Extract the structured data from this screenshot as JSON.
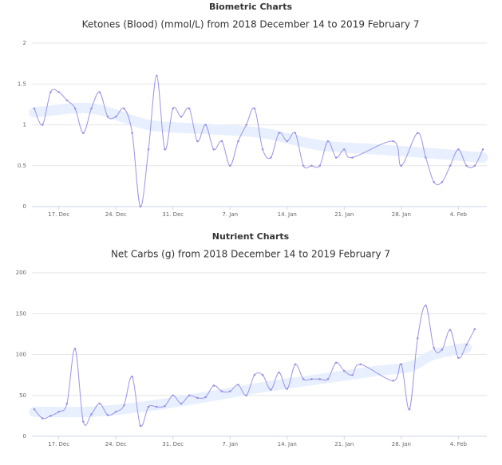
{
  "chart_data": [
    {
      "type": "line",
      "heading": "Biometric Charts",
      "title": "Ketones (Blood) (mmol/L) from 2018 December 14 to 2019 February 7",
      "xlim": [
        "2018-12-14",
        "2019-02-07"
      ],
      "xticks": [
        {
          "value": "2018-12-17",
          "label": "17. Dec"
        },
        {
          "value": "2018-12-24",
          "label": "24. Dec"
        },
        {
          "value": "2018-12-31",
          "label": "31. Dec"
        },
        {
          "value": "2019-01-07",
          "label": "7. Jan"
        },
        {
          "value": "2019-01-14",
          "label": "14. Jan"
        },
        {
          "value": "2019-01-21",
          "label": "21. Jan"
        },
        {
          "value": "2019-01-28",
          "label": "28. Jan"
        },
        {
          "value": "2019-02-04",
          "label": "4. Feb"
        }
      ],
      "ylim": [
        0,
        2
      ],
      "yticks": [
        0,
        0.5,
        1,
        1.5,
        2
      ],
      "grid": true,
      "series": [
        {
          "color": "#e8efff",
          "style": "band",
          "x": [
            "2018-12-14",
            "2018-12-21",
            "2018-12-28",
            "2019-01-04",
            "2019-01-11",
            "2019-01-18",
            "2019-01-25",
            "2019-02-01",
            "2019-02-07"
          ],
          "values": [
            1.15,
            1.2,
            1.0,
            0.95,
            0.9,
            0.75,
            0.7,
            0.65,
            0.6
          ]
        },
        {
          "color": "#9a94e6",
          "style": "line",
          "x": [
            "2018-12-14",
            "2018-12-15",
            "2018-12-16",
            "2018-12-17",
            "2018-12-18",
            "2018-12-19",
            "2018-12-20",
            "2018-12-21",
            "2018-12-22",
            "2018-12-23",
            "2018-12-24",
            "2018-12-25",
            "2018-12-26",
            "2018-12-27",
            "2018-12-28",
            "2018-12-29",
            "2018-12-30",
            "2018-12-31",
            "2019-01-01",
            "2019-01-02",
            "2019-01-03",
            "2019-01-04",
            "2019-01-05",
            "2019-01-06",
            "2019-01-07",
            "2019-01-08",
            "2019-01-09",
            "2019-01-10",
            "2019-01-11",
            "2019-01-12",
            "2019-01-13",
            "2019-01-14",
            "2019-01-15",
            "2019-01-16",
            "2019-01-17",
            "2019-01-18",
            "2019-01-19",
            "2019-01-20",
            "2019-01-21",
            "2019-01-22",
            "2019-01-27",
            "2019-01-28",
            "2019-01-30",
            "2019-01-31",
            "2019-02-01",
            "2019-02-02",
            "2019-02-03",
            "2019-02-04",
            "2019-02-05",
            "2019-02-06",
            "2019-02-07"
          ],
          "values": [
            1.2,
            1.0,
            1.4,
            1.4,
            1.3,
            1.2,
            0.9,
            1.2,
            1.4,
            1.1,
            1.1,
            1.2,
            0.9,
            0,
            0.7,
            1.6,
            0.7,
            1.2,
            1.1,
            1.2,
            0.8,
            1.0,
            0.7,
            0.8,
            0.5,
            0.8,
            1.0,
            1.2,
            0.7,
            0.6,
            0.9,
            0.8,
            0.9,
            0.5,
            0.5,
            0.5,
            0.8,
            0.6,
            0.7,
            0.6,
            0.8,
            0.5,
            0.9,
            0.6,
            0.3,
            0.3,
            0.5,
            0.7,
            0.5,
            0.5,
            0.7
          ]
        }
      ]
    },
    {
      "type": "line",
      "heading": "Nutrient Charts",
      "title": "Net Carbs (g) from 2018 December 14 to 2019 February 7",
      "xlim": [
        "2018-12-14",
        "2019-02-07"
      ],
      "xticks": [
        {
          "value": "2018-12-17",
          "label": "17. Dec"
        },
        {
          "value": "2018-12-24",
          "label": "24. Dec"
        },
        {
          "value": "2018-12-31",
          "label": "31. Dec"
        },
        {
          "value": "2019-01-07",
          "label": "7. Jan"
        },
        {
          "value": "2019-01-14",
          "label": "14. Jan"
        },
        {
          "value": "2019-01-21",
          "label": "21. Jan"
        },
        {
          "value": "2019-01-28",
          "label": "28. Jan"
        },
        {
          "value": "2019-02-04",
          "label": "4. Feb"
        }
      ],
      "ylim": [
        0,
        200
      ],
      "yticks": [
        0,
        50,
        100,
        150,
        200
      ],
      "grid": true,
      "series": [
        {
          "color": "#e8efff",
          "style": "band",
          "x": [
            "2018-12-14",
            "2018-12-21",
            "2018-12-28",
            "2019-01-04",
            "2019-01-11",
            "2019-01-18",
            "2019-01-25",
            "2019-01-29",
            "2019-02-01",
            "2019-02-05"
          ],
          "values": [
            30,
            30,
            37,
            48,
            60,
            70,
            80,
            85,
            100,
            108
          ]
        },
        {
          "color": "#9a94e6",
          "style": "line",
          "x": [
            "2018-12-14",
            "2018-12-15",
            "2018-12-16",
            "2018-12-17",
            "2018-12-18",
            "2018-12-19",
            "2018-12-20",
            "2018-12-21",
            "2018-12-22",
            "2018-12-23",
            "2018-12-24",
            "2018-12-25",
            "2018-12-26",
            "2018-12-27",
            "2018-12-28",
            "2018-12-29",
            "2018-12-30",
            "2018-12-31",
            "2019-01-01",
            "2019-01-02",
            "2019-01-03",
            "2019-01-04",
            "2019-01-05",
            "2019-01-06",
            "2019-01-07",
            "2019-01-08",
            "2019-01-09",
            "2019-01-10",
            "2019-01-11",
            "2019-01-12",
            "2019-01-13",
            "2019-01-14",
            "2019-01-15",
            "2019-01-16",
            "2019-01-17",
            "2019-01-18",
            "2019-01-19",
            "2019-01-20",
            "2019-01-21",
            "2019-01-22",
            "2019-01-23",
            "2019-01-27",
            "2019-01-28",
            "2019-01-29",
            "2019-01-30",
            "2019-01-31",
            "2019-02-01",
            "2019-02-02",
            "2019-02-03",
            "2019-02-04",
            "2019-02-05",
            "2019-02-06"
          ],
          "values": [
            33,
            22,
            25,
            30,
            40,
            107,
            18,
            27,
            40,
            26,
            30,
            38,
            73,
            13,
            36,
            36,
            37,
            50,
            40,
            50,
            47,
            48,
            62,
            55,
            55,
            63,
            50,
            75,
            75,
            57,
            78,
            58,
            88,
            70,
            70,
            70,
            70,
            90,
            80,
            75,
            88,
            68,
            88,
            33,
            120,
            160,
            108,
            106,
            130,
            96,
            112,
            131
          ]
        }
      ]
    }
  ]
}
